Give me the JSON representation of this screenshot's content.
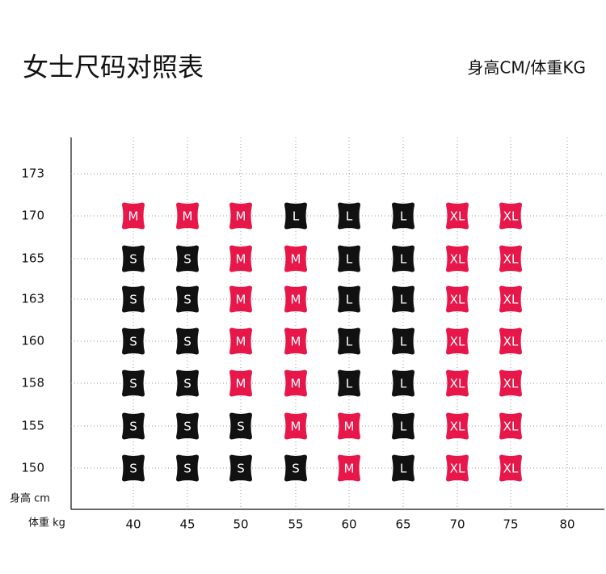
{
  "header": {
    "title": "女士尺码对照表",
    "subtitle": "身高CM/体重KG"
  },
  "y_axis": {
    "label": "身高 cm",
    "ticks": [
      "173",
      "170",
      "165",
      "163",
      "160",
      "158",
      "155",
      "150"
    ]
  },
  "x_axis": {
    "label": "体重 kg",
    "ticks": [
      "40",
      "45",
      "50",
      "55",
      "60",
      "65",
      "70",
      "75",
      "80"
    ]
  },
  "colors": {
    "S": "#111111",
    "L": "#111111",
    "M": "#e8174a",
    "XL": "#e8174a"
  },
  "grid": {
    "rows": [
      [
        "M",
        "M",
        "M",
        "L",
        "L",
        "L",
        "XL",
        "XL"
      ],
      [
        "S",
        "S",
        "M",
        "M",
        "L",
        "L",
        "XL",
        "XL"
      ],
      [
        "S",
        "S",
        "M",
        "M",
        "L",
        "L",
        "XL",
        "XL"
      ],
      [
        "S",
        "S",
        "M",
        "M",
        "L",
        "L",
        "XL",
        "XL"
      ],
      [
        "S",
        "S",
        "M",
        "M",
        "L",
        "L",
        "XL",
        "XL"
      ],
      [
        "S",
        "S",
        "S",
        "M",
        "M",
        "L",
        "XL",
        "XL"
      ],
      [
        "S",
        "S",
        "S",
        "S",
        "M",
        "L",
        "XL",
        "XL"
      ]
    ]
  }
}
